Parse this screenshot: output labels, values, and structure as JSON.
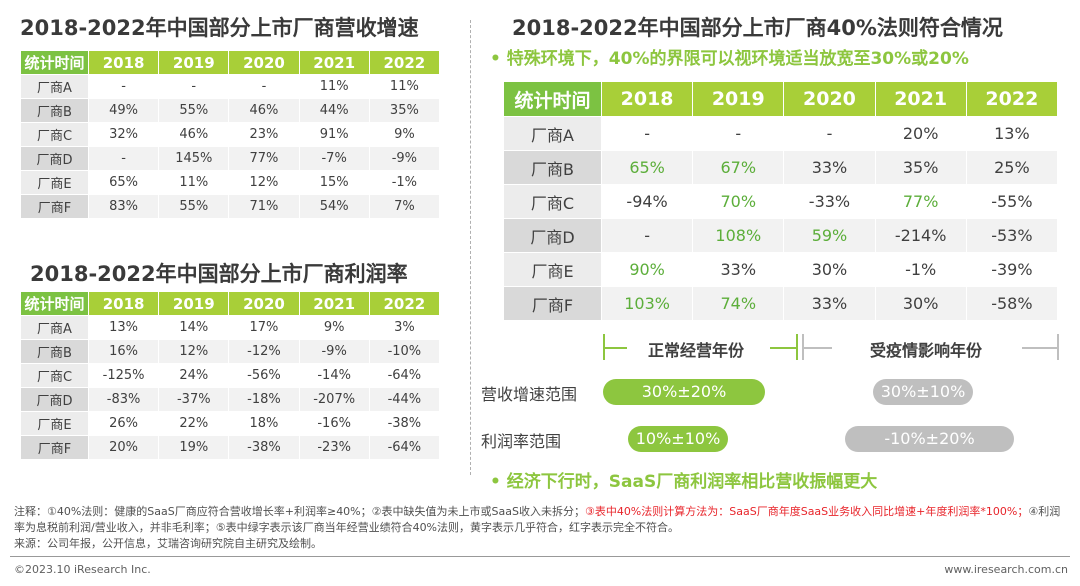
{
  "growth": {
    "title": "2018-2022年中国部分上市厂商营收增速",
    "header": [
      "统计时间",
      "2018",
      "2019",
      "2020",
      "2021",
      "2022"
    ],
    "rows": [
      [
        "厂商A",
        "-",
        "-",
        "-",
        "11%",
        "11%"
      ],
      [
        "厂商B",
        "49%",
        "55%",
        "46%",
        "44%",
        "35%"
      ],
      [
        "厂商C",
        "32%",
        "46%",
        "23%",
        "91%",
        "9%"
      ],
      [
        "厂商D",
        "-",
        "145%",
        "77%",
        "-7%",
        "-9%"
      ],
      [
        "厂商E",
        "65%",
        "11%",
        "12%",
        "15%",
        "-1%"
      ],
      [
        "厂商F",
        "83%",
        "55%",
        "71%",
        "54%",
        "7%"
      ]
    ]
  },
  "profit": {
    "title": "2018-2022年中国部分上市厂商利润率",
    "header": [
      "统计时间",
      "2018",
      "2019",
      "2020",
      "2021",
      "2022"
    ],
    "rows": [
      [
        "厂商A",
        "13%",
        "14%",
        "17%",
        "9%",
        "3%"
      ],
      [
        "厂商B",
        "16%",
        "12%",
        "-12%",
        "-9%",
        "-10%"
      ],
      [
        "厂商C",
        "-125%",
        "24%",
        "-56%",
        "-14%",
        "-64%"
      ],
      [
        "厂商D",
        "-83%",
        "-37%",
        "-18%",
        "-207%",
        "-44%"
      ],
      [
        "厂商E",
        "26%",
        "22%",
        "18%",
        "-16%",
        "-38%"
      ],
      [
        "厂商F",
        "20%",
        "19%",
        "-38%",
        "-23%",
        "-64%"
      ]
    ]
  },
  "rule40": {
    "title": "2018-2022年中国部分上市厂商40%法则符合情况",
    "subtitle": "•  特殊环境下，40%的界限可以视环境适当放宽至30%或20%",
    "header": [
      "统计时间",
      "2018",
      "2019",
      "2020",
      "2021",
      "2022"
    ],
    "rows": [
      [
        "厂商A",
        "-",
        "-",
        "-",
        "20%",
        "13%"
      ],
      [
        "厂商B",
        "65%",
        "67%",
        "33%",
        "35%",
        "25%"
      ],
      [
        "厂商C",
        "-94%",
        "70%",
        "-33%",
        "77%",
        "-55%"
      ],
      [
        "厂商D",
        "-",
        "108%",
        "59%",
        "-214%",
        "-53%"
      ],
      [
        "厂商E",
        "90%",
        "33%",
        "30%",
        "-1%",
        "-39%"
      ],
      [
        "厂商F",
        "103%",
        "74%",
        "33%",
        "30%",
        "-58%"
      ]
    ],
    "green_cells": [
      [
        1,
        1
      ],
      [
        1,
        2
      ],
      [
        2,
        2
      ],
      [
        2,
        4
      ],
      [
        3,
        2
      ],
      [
        3,
        3
      ],
      [
        4,
        1
      ],
      [
        5,
        1
      ],
      [
        5,
        2
      ]
    ]
  },
  "ranges": {
    "normal_label": "正常经营年份",
    "covid_label": "受疫情影响年份",
    "revenue_label": "营收增速范围",
    "profit_label": "利润率范围",
    "revenue_normal": "30%±20%",
    "revenue_covid": "30%±10%",
    "profit_normal": "10%±10%",
    "profit_covid": "-10%±20%"
  },
  "conclusion": "•  经济下行时，SaaS厂商利润率相比营收振幅更大",
  "notes": {
    "part1": "注释：①40%法则：健康的SaaS厂商应符合营收增长率+利润率≥40%；②表中缺失值为未上市或SaaS收入未拆分；",
    "part2": "③表中40%法则计算方法为：SaaS厂商年度SaaS业务收入同比增速+年度利润率*100%；",
    "part3": "④利润率为息税前利润/营业收入，并非毛利率；⑤表中绿字表示该厂商当年经营业绩符合40%法则，黄字表示几乎符合，红字表示完全不符合。",
    "source": "来源：公司年报，公开信息，艾瑞咨询研究院自主研究及绘制。"
  },
  "footer": {
    "copyright": "©2023.10 iResearch Inc.",
    "website": "www.iresearch.com.cn"
  },
  "colors": {
    "green": "#8dc63f",
    "lime": "#a8cf38",
    "gray": "#bfbfbf",
    "red": "#e8252b"
  }
}
